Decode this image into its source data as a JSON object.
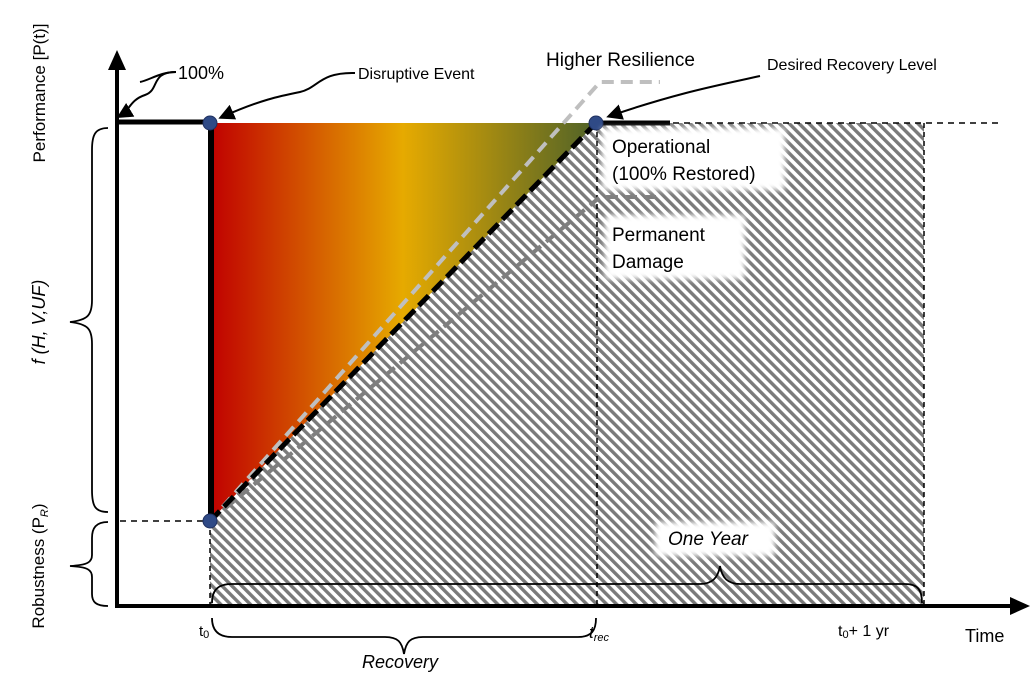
{
  "labels": {
    "y_axis": "Performance [P(t)]",
    "x_axis": "Time",
    "hundred_percent": "100%",
    "disruptive_event": "Disruptive Event",
    "higher_resilience": "Higher Resilience",
    "desired_recovery_level": "Desired Recovery Level",
    "operational_line1": "Operational",
    "operational_line2": "(100% Restored)",
    "permanent_line1": "Permanent",
    "permanent_line2": "Damage",
    "function_label": "f (H, V,UF)",
    "robustness_label": "Robustness (P",
    "robustness_sub": "R",
    "robustness_close": ")",
    "one_year": "One Year",
    "recovery": "Recovery",
    "t0_label": "t",
    "t0_sub": "0",
    "trec_label": "t",
    "trec_sub": "rec",
    "t1yr_label": "t",
    "t1yr_sub": "0",
    "t1yr_suffix": "+ 1 yr"
  },
  "colors": {
    "gradient_start": "#c00000",
    "gradient_mid": "#e6aa00",
    "gradient_end": "#4f6228",
    "marker": "#2f4a86",
    "hatch": "#777777"
  }
}
